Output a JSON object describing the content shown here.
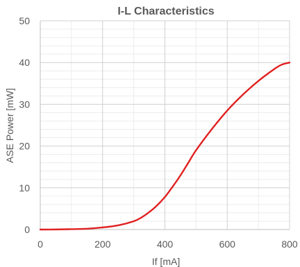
{
  "chart_data": {
    "type": "line",
    "title": "I-L Characteristics",
    "xlabel": "If [mA]",
    "ylabel": "ASE Power [mW]",
    "xlim": [
      0,
      800
    ],
    "ylim": [
      0,
      50
    ],
    "x_ticks": [
      0,
      200,
      400,
      600,
      800
    ],
    "y_ticks": [
      0,
      10,
      20,
      30,
      40,
      50
    ],
    "x_minor_step": 100,
    "y_minor_step": 2,
    "grid": true,
    "legend": "none",
    "line_color": "#e02020",
    "grid_major_color": "#d0d0d0",
    "grid_minor_color": "#ececec",
    "series": [
      {
        "x": [
          0,
          50,
          100,
          150,
          200,
          250,
          300,
          325,
          350,
          375,
          400,
          425,
          450,
          475,
          500,
          550,
          600,
          650,
          700,
          750,
          775,
          800
        ],
        "y": [
          0,
          0.02,
          0.1,
          0.2,
          0.5,
          1.0,
          2.0,
          2.9,
          4.2,
          5.8,
          7.8,
          10.3,
          13.0,
          16.0,
          19.0,
          24.0,
          28.5,
          32.3,
          35.6,
          38.4,
          39.5,
          40.0
        ]
      }
    ]
  }
}
